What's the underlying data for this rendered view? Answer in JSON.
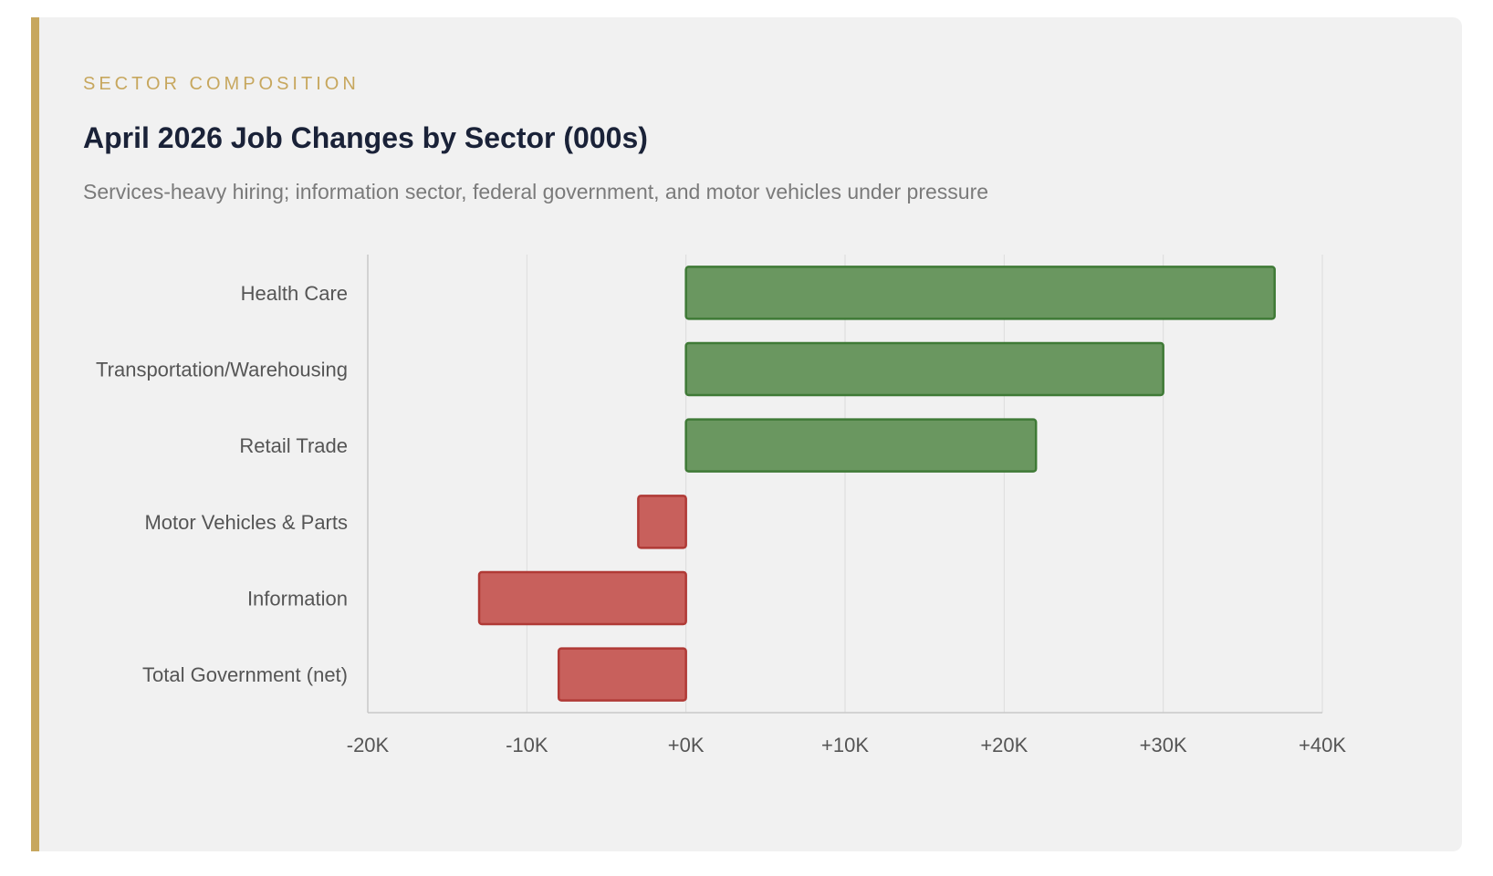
{
  "card": {
    "eyebrow": "SECTOR COMPOSITION",
    "title": "April 2026 Job Changes by Sector (000s)",
    "subtitle": "Services-heavy hiring; information sector, federal government, and motor vehicles under pressure"
  },
  "colors": {
    "accent": "#c7a75e",
    "positive_fill": "#6a9760",
    "positive_stroke": "#3f7a36",
    "negative_fill": "#c8605c",
    "negative_stroke": "#b03a36",
    "title": "#1a2238"
  },
  "chart_data": {
    "type": "bar",
    "orientation": "horizontal",
    "categories": [
      "Health Care",
      "Transportation/Warehousing",
      "Retail Trade",
      "Motor Vehicles & Parts",
      "Information",
      "Total Government (net)"
    ],
    "values": [
      37,
      30,
      22,
      -3,
      -13,
      -8
    ],
    "xlim": [
      -20,
      40
    ],
    "xticks": [
      -20,
      -10,
      0,
      10,
      20,
      30,
      40
    ],
    "xtick_labels": [
      "-20K",
      "-10K",
      "+0K",
      "+10K",
      "+20K",
      "+30K",
      "+40K"
    ],
    "grid": "vertical",
    "legend": "none"
  }
}
